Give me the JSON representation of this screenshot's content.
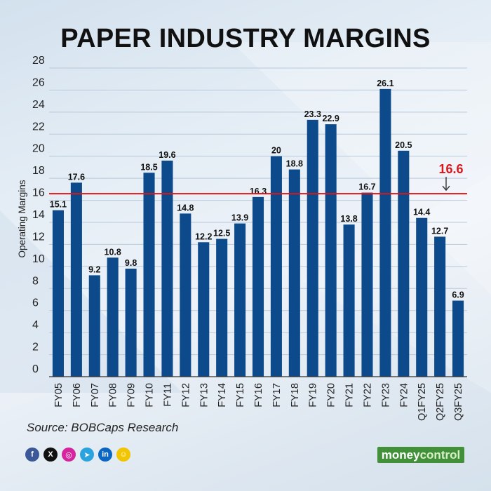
{
  "title": "PAPER INDUSTRY MARGINS",
  "source": "Source: BOBCaps Research",
  "brand": {
    "part1": "money",
    "part2": "control"
  },
  "social_icons": [
    {
      "name": "facebook-icon",
      "glyph": "f",
      "color": "#3b5998"
    },
    {
      "name": "x-icon",
      "glyph": "X",
      "color": "#111111"
    },
    {
      "name": "instagram-icon",
      "glyph": "◎",
      "color": "#d6249f"
    },
    {
      "name": "telegram-icon",
      "glyph": "➤",
      "color": "#2aa3df"
    },
    {
      "name": "linkedin-icon",
      "glyph": "in",
      "color": "#0a66c2"
    },
    {
      "name": "snapchat-icon",
      "glyph": "☺",
      "color": "#f2c500"
    }
  ],
  "chart_data": {
    "type": "bar",
    "title": "PAPER INDUSTRY MARGINS",
    "xlabel": "",
    "ylabel": "Operating Margins",
    "ylim": [
      0,
      28
    ],
    "yticks": [
      0,
      2,
      4,
      6,
      8,
      10,
      12,
      14,
      16,
      18,
      20,
      22,
      24,
      26,
      28
    ],
    "grid": true,
    "bar_color": "#0d4a8c",
    "categories": [
      "FY05",
      "FY06",
      "FY07",
      "FY08",
      "FY09",
      "FY10",
      "FY11",
      "FY12",
      "FY13",
      "FY14",
      "FY15",
      "FY16",
      "FY17",
      "FY18",
      "FY19",
      "FY20",
      "FY21",
      "FY22",
      "FY23",
      "FY24",
      "Q1FY25",
      "Q2FY25",
      "Q3FY25"
    ],
    "values": [
      15.1,
      17.6,
      9.2,
      10.8,
      9.8,
      18.5,
      19.6,
      14.8,
      12.2,
      12.5,
      13.9,
      16.3,
      20,
      18.8,
      23.3,
      22.9,
      13.8,
      16.7,
      26.1,
      20.5,
      14.4,
      12.7,
      6.9
    ],
    "value_labels": [
      "15.1",
      "17.6",
      "9.2",
      "10.8",
      "9.8",
      "18.5",
      "19.6",
      "14.8",
      "12.2",
      "12.5",
      "13.9",
      "16.3",
      "20",
      "18.8",
      "23.3",
      "22.9",
      "13.8",
      "16.7",
      "26.1",
      "20.5",
      "14.4",
      "12.7",
      "6.9"
    ],
    "reference_line": {
      "value": 16.6,
      "label": "16.6",
      "color": "#d7191c"
    }
  }
}
